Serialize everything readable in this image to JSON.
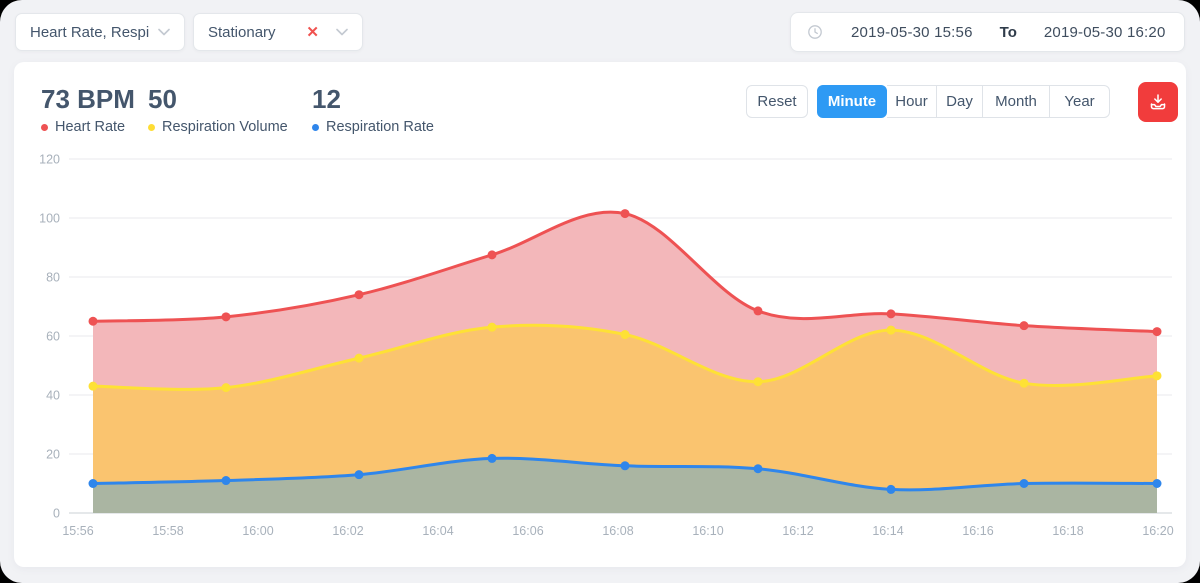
{
  "filters": {
    "metric_select": {
      "value": "Heart Rate, Respir..."
    },
    "activity_select": {
      "value": "Stationary",
      "clear_icon": "x"
    }
  },
  "date_range": {
    "start": "2019-05-30 15:56",
    "separator": "To",
    "end": "2019-05-30 16:20"
  },
  "stats": [
    {
      "value": "73 BPM",
      "label": "Heart Rate",
      "color": "#EE5253"
    },
    {
      "value": "50",
      "label": "Respiration Volume",
      "color": "#FEDD35"
    },
    {
      "value": "12",
      "label": "Respiration Rate",
      "color": "#2F86EB"
    }
  ],
  "toolbar": {
    "reset_label": "Reset",
    "ranges": [
      {
        "label": "Minute",
        "active": true
      },
      {
        "label": "Hour",
        "active": false
      },
      {
        "label": "Day",
        "active": false
      },
      {
        "label": "Month",
        "active": false
      },
      {
        "label": "Year",
        "active": false
      }
    ],
    "active_color": "#2E9AF4",
    "download_button_color": "#F13C3C",
    "download_icon": "download-into-tray"
  },
  "chart_data": {
    "type": "area",
    "title": "",
    "xlabel": "",
    "ylabel": "",
    "x": [
      "15:56",
      "15:59",
      "16:02",
      "16:05",
      "16:08",
      "16:11",
      "16:14",
      "16:17",
      "16:20"
    ],
    "x_axis_ticks": [
      "15:56",
      "15:58",
      "16:00",
      "16:02",
      "16:04",
      "16:06",
      "16:08",
      "16:10",
      "16:12",
      "16:14",
      "16:16",
      "16:18",
      "16:20"
    ],
    "y_ticks": [
      0,
      20,
      40,
      60,
      80,
      100,
      120
    ],
    "ylim": [
      0,
      120
    ],
    "grid": true,
    "smooth": true,
    "legend_position": "top-left-stats",
    "series": [
      {
        "name": "Heart Rate",
        "color": "#EE5253",
        "fill": "#F3B7BA",
        "values": [
          65,
          66.5,
          74,
          87.5,
          101.5,
          68.5,
          67.5,
          63.5,
          61.5
        ]
      },
      {
        "name": "Respiration Volume",
        "color": "#FEE135",
        "fill": "#FAC46F",
        "values": [
          43,
          42.5,
          52.5,
          63,
          60.5,
          44.5,
          62,
          44,
          46.5
        ]
      },
      {
        "name": "Respiration Rate",
        "color": "#2F86EB",
        "fill": "#AAB5A2",
        "values": [
          10,
          11,
          13,
          18.5,
          16,
          15,
          8,
          10,
          10
        ]
      }
    ]
  }
}
